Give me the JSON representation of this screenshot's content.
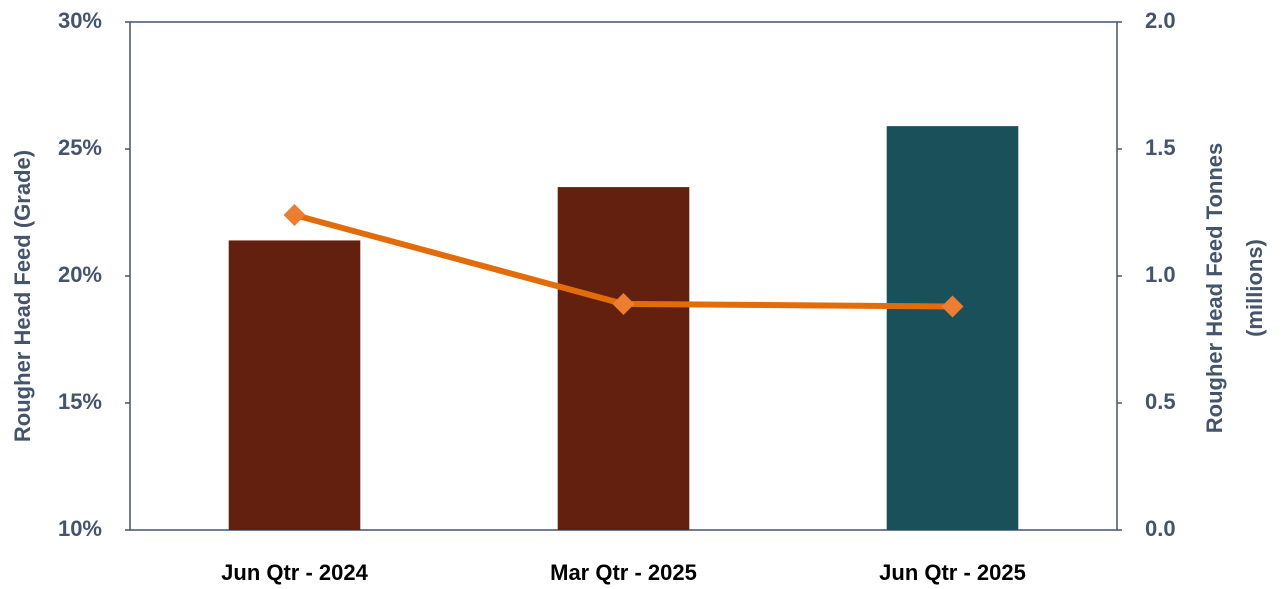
{
  "chart_data": {
    "type": "bar-line",
    "categories": [
      "Jun Qtr - 2024",
      "Mar Qtr - 2025",
      "Jun Qtr - 2025"
    ],
    "series": [
      {
        "type": "bar",
        "axis": "y2",
        "colors": [
          "#64200e",
          "#64200e",
          "#1a505a"
        ],
        "values": [
          1.14,
          1.35,
          1.59
        ]
      },
      {
        "type": "line",
        "axis": "y",
        "color": "#e36c0a",
        "marker_color": "#ed7d31",
        "values": [
          22.4,
          18.9,
          18.8
        ]
      }
    ],
    "ylabel": "Rougher Head Feed (Grade)",
    "y2label": [
      "Rougher Head Feed Tonnes",
      "(millions)"
    ],
    "ylim": [
      10,
      30
    ],
    "yticks": [
      {
        "value": 10,
        "label": "10%"
      },
      {
        "value": 15,
        "label": "15%"
      },
      {
        "value": 20,
        "label": "20%"
      },
      {
        "value": 25,
        "label": "25%"
      },
      {
        "value": 30,
        "label": "30%"
      }
    ],
    "y2lim": [
      0,
      2
    ],
    "y2ticks": [
      {
        "value": 0,
        "label": "0.0"
      },
      0.5,
      {
        "value": 1,
        "label": "1.0"
      },
      1.5,
      {
        "value": 2,
        "label": "2.0"
      }
    ],
    "grid": false
  }
}
